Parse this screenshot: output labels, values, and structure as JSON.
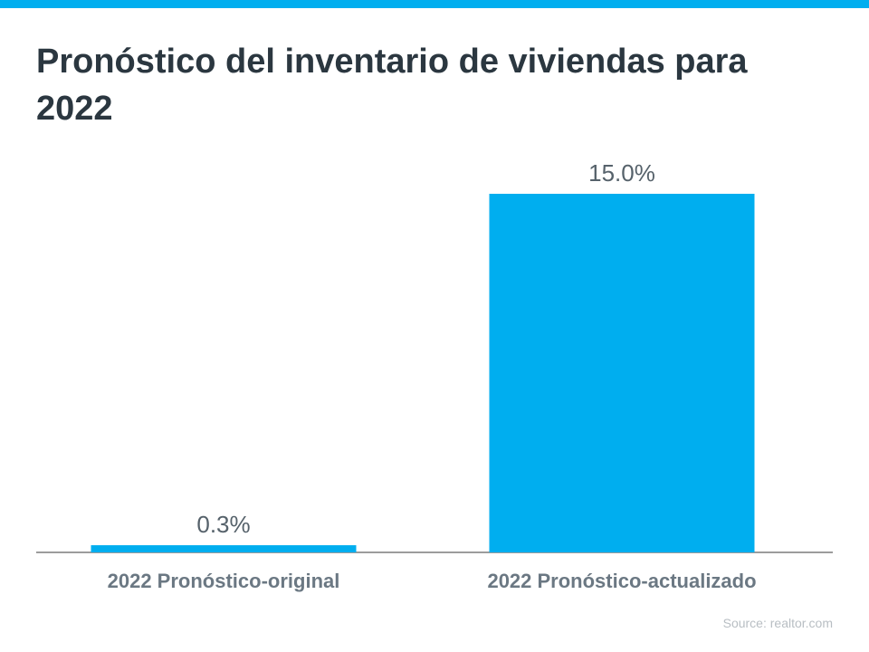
{
  "chart_data": {
    "type": "bar",
    "title": "Pronóstico del inventario de viviendas para 2022",
    "categories": [
      "2022 Pronóstico-original",
      "2022 Pronóstico-actualizado"
    ],
    "values": [
      0.3,
      15.0
    ],
    "value_labels": [
      "0.3%",
      "15.0%"
    ],
    "color": "#00aeef",
    "source": "Source: realtor.com"
  }
}
